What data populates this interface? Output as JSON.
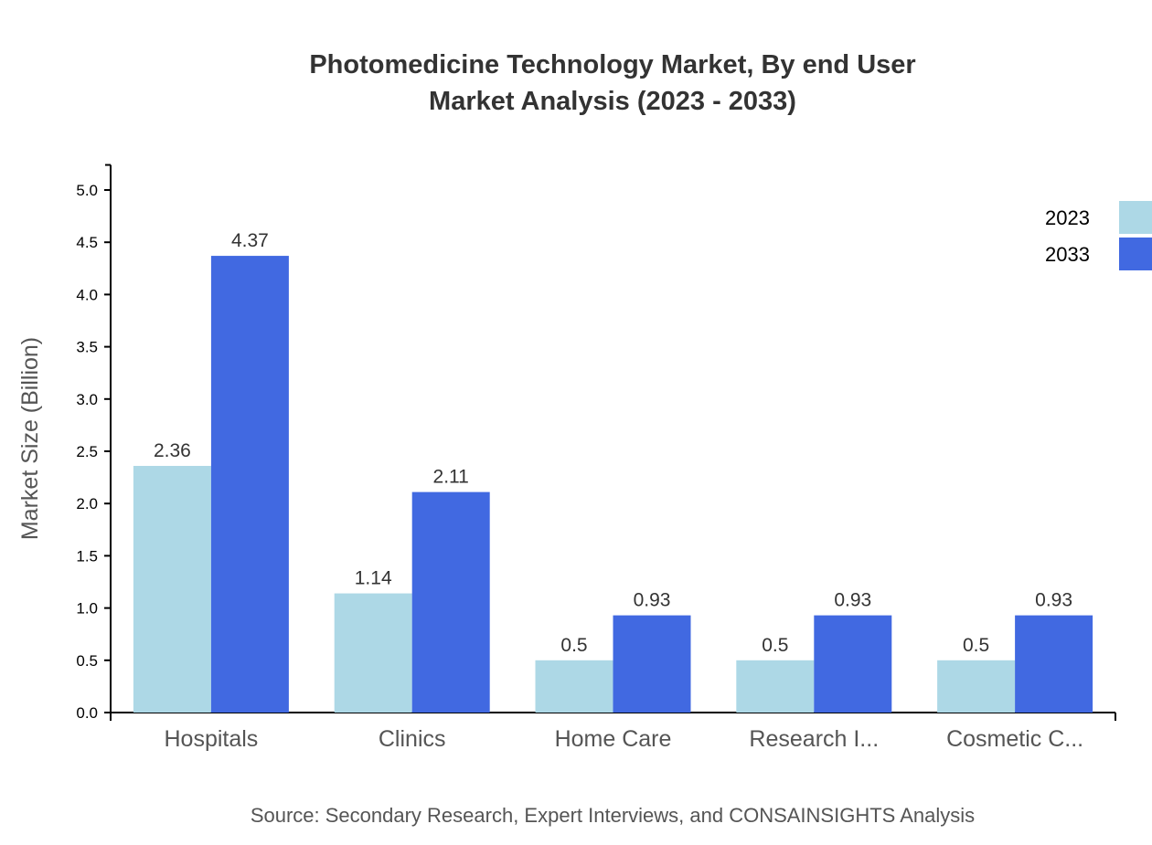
{
  "chart_data": {
    "type": "bar",
    "title": "Photomedicine Technology Market, By end User",
    "subtitle": "Market Analysis (2023 - 2033)",
    "xlabel": "",
    "ylabel": "Market Size (Billion)",
    "ylim": [
      0,
      5.24
    ],
    "yticks": [
      "0.0",
      "0.5",
      "1.0",
      "1.5",
      "2.0",
      "2.5",
      "3.0",
      "3.5",
      "4.0",
      "4.5",
      "5.0"
    ],
    "categories": [
      "Hospitals",
      "Clinics",
      "Home Care",
      "Research I...",
      "Cosmetic C..."
    ],
    "series": [
      {
        "name": "2023",
        "color": "#add8e6",
        "values": [
          2.36,
          1.14,
          0.5,
          0.5,
          0.5
        ]
      },
      {
        "name": "2033",
        "color": "#4169e1",
        "values": [
          4.37,
          2.11,
          0.93,
          0.93,
          0.93
        ]
      }
    ],
    "grid": false,
    "legend": "top-right",
    "source": "Source: Secondary Research, Expert Interviews, and CONSAINSIGHTS Analysis"
  }
}
